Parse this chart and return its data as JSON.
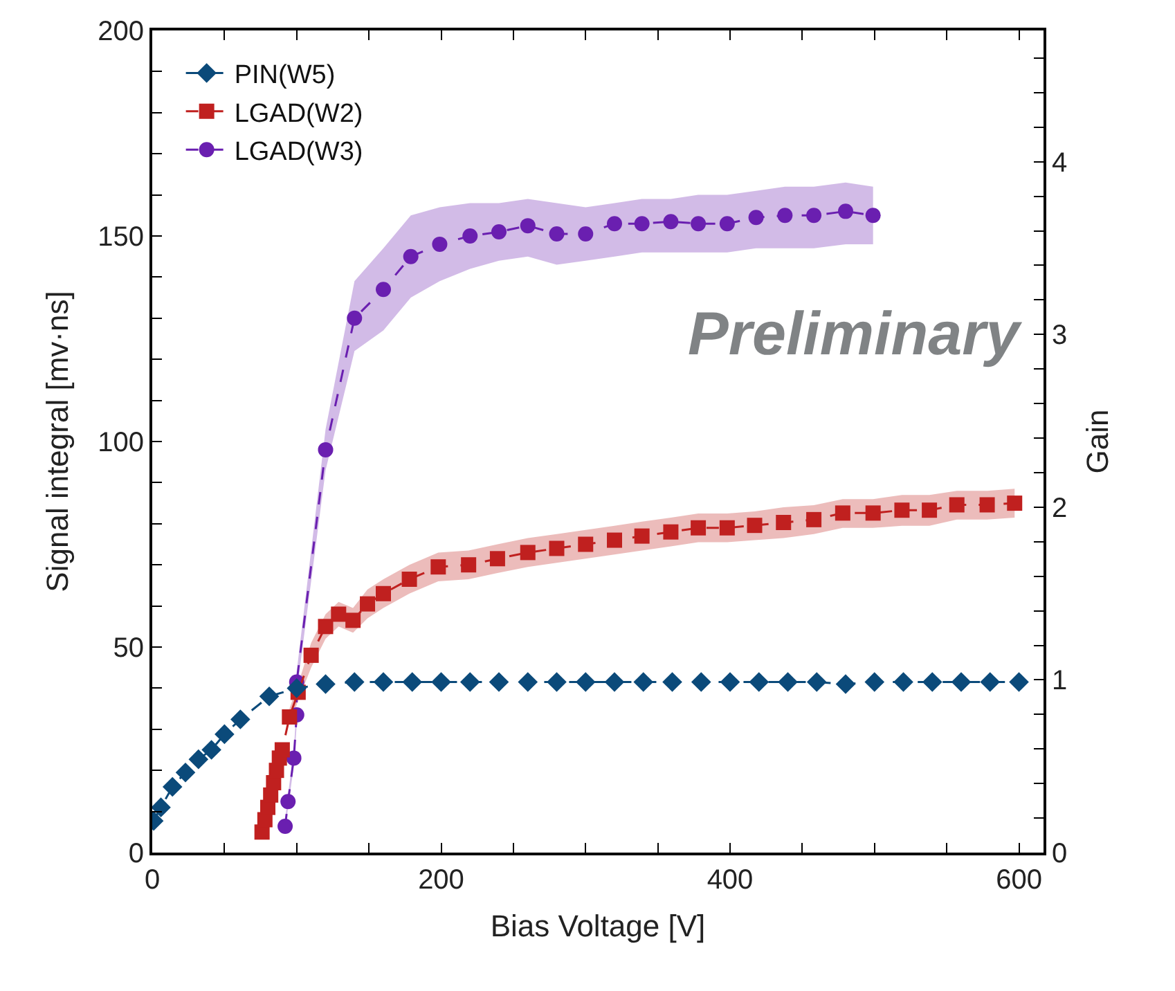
{
  "chart_data": {
    "type": "line",
    "xlabel": "Bias Voltage [V]",
    "ylabel": "Signal integral [mv·ns]",
    "y2label": "Gain",
    "annotations": [
      "Preliminary"
    ],
    "xlim": [
      0,
      617
    ],
    "ylim": [
      0,
      200
    ],
    "y2lim": [
      0,
      4.76
    ],
    "xticks": [
      0,
      {
        "value": 50,
        "label": null
      },
      {
        "value": 100,
        "label": null
      },
      {
        "value": 150,
        "label": null
      },
      200,
      {
        "value": 250,
        "label": null
      },
      {
        "value": 300,
        "label": null
      },
      {
        "value": 350,
        "label": null
      },
      400,
      {
        "value": 450,
        "label": null
      },
      {
        "value": 500,
        "label": null
      },
      {
        "value": 550,
        "label": null
      },
      600
    ],
    "yticks": [
      0,
      {
        "value": 10,
        "label": null
      },
      {
        "value": 20,
        "label": null
      },
      {
        "value": 30,
        "label": null
      },
      {
        "value": 40,
        "label": null
      },
      50,
      {
        "value": 60,
        "label": null
      },
      {
        "value": 70,
        "label": null
      },
      {
        "value": 80,
        "label": null
      },
      {
        "value": 90,
        "label": null
      },
      100,
      {
        "value": 110,
        "label": null
      },
      {
        "value": 120,
        "label": null
      },
      {
        "value": 130,
        "label": null
      },
      {
        "value": 140,
        "label": null
      },
      150,
      {
        "value": 160,
        "label": null
      },
      {
        "value": 170,
        "label": null
      },
      {
        "value": 180,
        "label": null
      },
      {
        "value": 190,
        "label": null
      },
      200
    ],
    "y2ticks": [
      0,
      {
        "value": 0.2,
        "label": null
      },
      {
        "value": 0.4,
        "label": null
      },
      {
        "value": 0.6,
        "label": null
      },
      {
        "value": 0.8,
        "label": null
      },
      1,
      {
        "value": 1.2,
        "label": null
      },
      {
        "value": 1.4,
        "label": null
      },
      {
        "value": 1.6,
        "label": null
      },
      {
        "value": 1.8,
        "label": null
      },
      2,
      {
        "value": 2.2,
        "label": null
      },
      {
        "value": 2.4,
        "label": null
      },
      {
        "value": 2.6,
        "label": null
      },
      {
        "value": 2.8,
        "label": null
      },
      3,
      {
        "value": 3.2,
        "label": null
      },
      {
        "value": 3.4,
        "label": null
      },
      {
        "value": 3.6,
        "label": null
      },
      {
        "value": 3.8,
        "label": null
      },
      4,
      {
        "value": 4.2,
        "label": null
      },
      {
        "value": 4.4,
        "label": null
      },
      {
        "value": 4.6,
        "label": null
      }
    ],
    "legend": "top left",
    "line_style": "dashed",
    "series": [
      {
        "name": "PIN(W5)",
        "color": "#0b4a7a",
        "marker": "diamond",
        "x": [
          1,
          6,
          14,
          23,
          32,
          41,
          50,
          61,
          81,
          100,
          120,
          140,
          160,
          180,
          200,
          220,
          240,
          260,
          280,
          300,
          320,
          340,
          360,
          380,
          400,
          420,
          440,
          460,
          480,
          500,
          520,
          540,
          560,
          580,
          600
        ],
        "values": [
          7.7,
          11,
          16,
          19.5,
          22.7,
          25,
          28.8,
          32.4,
          38,
          40,
          41,
          41.5,
          41.5,
          41.5,
          41.5,
          41.5,
          41.5,
          41.5,
          41.5,
          41.5,
          41.5,
          41.5,
          41.5,
          41.5,
          41.5,
          41.5,
          41.5,
          41.5,
          41,
          41.5,
          41.5,
          41.5,
          41.5,
          41.5,
          41.5
        ]
      },
      {
        "name": "LGAD(W2)",
        "color": "#c0201f",
        "marker": "square",
        "x": [
          76,
          78,
          80,
          82,
          84,
          86,
          88,
          90,
          95,
          101,
          110,
          120,
          129,
          139,
          149,
          160,
          178,
          198,
          219,
          239,
          260,
          280,
          300,
          320,
          339,
          359,
          378,
          398,
          417,
          437,
          458,
          478,
          499,
          519,
          538,
          557,
          578,
          597
        ],
        "values": [
          5,
          8,
          11,
          14,
          17,
          20,
          23,
          25,
          33,
          39,
          48,
          55,
          58,
          56.5,
          60.5,
          63,
          66.5,
          69.5,
          70,
          71.5,
          73,
          74,
          75,
          76,
          77,
          78,
          79,
          79,
          79.6,
          80.3,
          81,
          82.6,
          82.6,
          83.3,
          83.3,
          84.6,
          84.6,
          85
        ],
        "lower": [
          null,
          null,
          null,
          null,
          null,
          null,
          null,
          null,
          31,
          37,
          45,
          52,
          55,
          53.5,
          57,
          59.5,
          63,
          66,
          66.5,
          68,
          69.5,
          70.5,
          71.5,
          72.5,
          73.5,
          74.5,
          75.5,
          75.5,
          76,
          76.5,
          77.5,
          79,
          79,
          79.5,
          79.5,
          81,
          81,
          81.5
        ],
        "upper": [
          null,
          null,
          null,
          null,
          null,
          null,
          null,
          null,
          35,
          41,
          51,
          58,
          61,
          59.5,
          64,
          66.5,
          70,
          73,
          73.5,
          75,
          76.5,
          77.5,
          78.5,
          79.5,
          80.5,
          81.5,
          82.5,
          82.5,
          83,
          84,
          84.5,
          86,
          86,
          87,
          87,
          88,
          88,
          88.5
        ]
      },
      {
        "name": "LGAD(W3)",
        "color": "#6a1fb0",
        "marker": "circle",
        "x": [
          92,
          94,
          98,
          100,
          100,
          120,
          140,
          160,
          179,
          199,
          220,
          240,
          260,
          280,
          300,
          320,
          339,
          359,
          378,
          398,
          418,
          438,
          458,
          480,
          499
        ],
        "values": [
          6.4,
          12.4,
          23,
          33.5,
          41.5,
          98,
          130,
          137,
          145,
          148,
          150,
          151,
          152.5,
          150.5,
          150.5,
          153,
          153,
          153.5,
          153,
          153,
          154.5,
          155,
          155,
          156,
          155
        ],
        "lower": [
          5,
          11,
          21,
          31,
          39,
          93,
          122,
          127,
          135,
          139,
          142,
          144,
          145,
          143,
          144,
          145,
          146,
          146,
          146,
          146,
          147,
          147,
          147,
          148,
          148
        ],
        "upper": [
          8,
          14,
          25,
          36,
          44,
          103,
          139,
          147,
          155,
          157,
          158,
          158,
          159,
          158,
          157,
          158,
          159,
          159,
          160,
          160,
          161,
          162,
          162,
          163,
          162
        ]
      }
    ]
  }
}
